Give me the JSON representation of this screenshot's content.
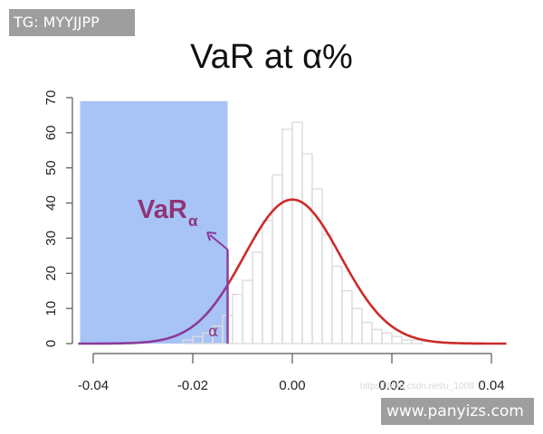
{
  "badges": {
    "top_left": "TG: MYYJJPP",
    "bottom_right": "www.panyizs.com"
  },
  "faint_watermark": "https://blog.csdn.net/u_1008",
  "colors": {
    "shade": "#a8c3f5",
    "normal_curve": "#cc2a2a",
    "tail_curve": "#8a3a9a",
    "annotation": "#8e3577",
    "bar_stroke": "#dcdcdc",
    "axis": "#555555"
  },
  "annotations": {
    "var_label": "VaR",
    "var_subscript": "α",
    "alpha_label": "α"
  },
  "chart_data": {
    "type": "bar",
    "title": "VaR at α%",
    "xlabel": "",
    "ylabel": "",
    "xlim": [
      -0.043,
      0.043
    ],
    "ylim": [
      0,
      70
    ],
    "xticks": [
      "-0.04",
      "-0.02",
      "0.00",
      "0.02",
      "0.04"
    ],
    "yticks": [
      "0",
      "10",
      "20",
      "30",
      "40",
      "50",
      "60",
      "70"
    ],
    "grid": false,
    "bin_width": 0.002,
    "histogram": {
      "bin_left_edges": [
        -0.022,
        -0.02,
        -0.018,
        -0.016,
        -0.014,
        -0.012,
        -0.01,
        -0.008,
        -0.006,
        -0.004,
        -0.002,
        0.0,
        0.002,
        0.004,
        0.006,
        0.008,
        0.01,
        0.012,
        0.014,
        0.016,
        0.018,
        0.02,
        0.022,
        0.024
      ],
      "counts": [
        1,
        2,
        3,
        5,
        8,
        14,
        18,
        26,
        35,
        48,
        61,
        63,
        54,
        44,
        31,
        22,
        15,
        10,
        6,
        4,
        3,
        2,
        1,
        1
      ]
    },
    "normal_curve": {
      "mean": 0.0,
      "sd": 0.0097,
      "peak_density": 41
    },
    "var_threshold_x": -0.013,
    "shaded_region": {
      "x_from": -0.043,
      "x_to": -0.013,
      "y_to": 69
    }
  }
}
